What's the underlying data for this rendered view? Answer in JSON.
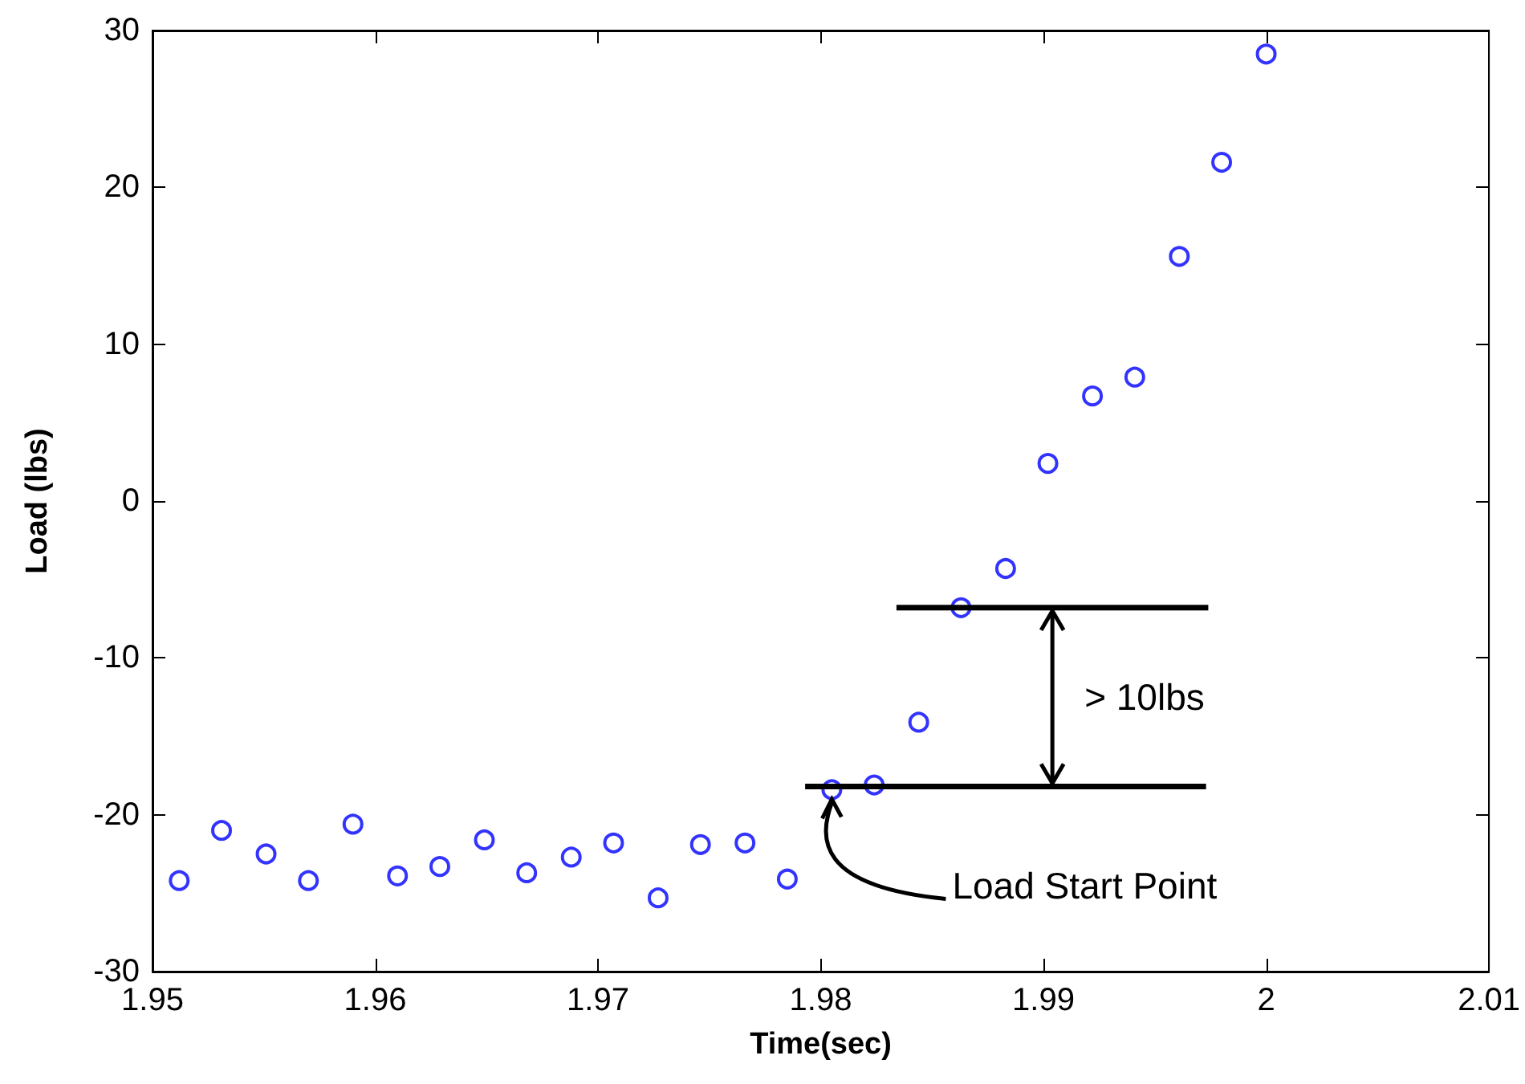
{
  "chart_data": {
    "type": "scatter",
    "xlabel": "Time(sec)",
    "ylabel": "Load (lbs)",
    "xlim": [
      1.95,
      2.01
    ],
    "xticks": [
      1.95,
      1.96,
      1.97,
      1.98,
      1.99,
      2,
      2.01
    ],
    "ylim": [
      -30,
      30
    ],
    "yticks": [
      -30,
      -20,
      -10,
      0,
      10,
      20,
      30
    ],
    "grid": false,
    "marker": "circle",
    "series": [
      {
        "color": "#0000ff",
        "x": [
          1.9512,
          1.9531,
          1.9551,
          1.957,
          1.959,
          1.961,
          1.9629,
          1.9649,
          1.9668,
          1.9688,
          1.9707,
          1.9727,
          1.9746,
          1.9766,
          1.9785,
          1.9805,
          1.9824,
          1.9844,
          1.9863,
          1.9883,
          1.9902,
          1.9922,
          1.9941,
          1.9961,
          1.998,
          2.0
        ],
        "values": [
          -24.2,
          -21.0,
          -22.5,
          -24.2,
          -20.6,
          -23.9,
          -23.3,
          -21.6,
          -23.7,
          -22.7,
          -21.8,
          -25.3,
          -21.9,
          -21.8,
          -24.1,
          -18.4,
          -18.1,
          -14.1,
          -6.8,
          -4.3,
          2.4,
          6.7,
          7.9,
          15.6,
          21.6,
          28.5
        ]
      },
      {
        "type": "line",
        "color": "#000000",
        "marker": "none",
        "line_style": "solid",
        "x": [
          1.9793,
          1.9973
        ],
        "values": [
          -18.2,
          -18.2
        ]
      },
      {
        "type": "line",
        "color": "#000000",
        "marker": "none",
        "line_style": "solid",
        "x": [
          1.9834,
          1.9974
        ],
        "values": [
          -6.8,
          -6.8
        ]
      }
    ],
    "annotations": [
      "> 10lbs",
      {
        "text": "Load Start Point",
        "x": 1.9805,
        "y": -18.4
      }
    ]
  }
}
